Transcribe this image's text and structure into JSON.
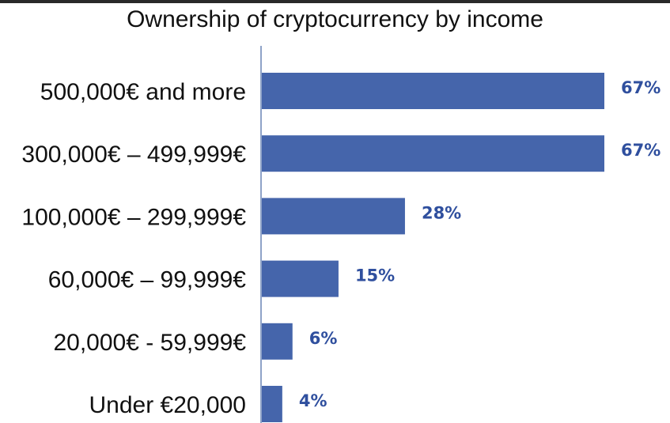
{
  "chart_data": {
    "type": "bar",
    "orientation": "horizontal",
    "title": "Ownership of cryptocurrency by income",
    "xlabel": "",
    "ylabel": "",
    "categories": [
      "500,000€ and more",
      "300,000€ – 499,999€",
      "100,000€ – 299,999€",
      "60,000€ – 99,999€",
      "20,000€ - 59,999€",
      "Under €20,000"
    ],
    "values": [
      67,
      67,
      28,
      15,
      6,
      4
    ],
    "data_labels": [
      "67%",
      "67%",
      "28%",
      "15%",
      "6%",
      "4%"
    ],
    "xlim": [
      0,
      67
    ],
    "grid": false,
    "legend": "none",
    "bar_color": "#4565ab",
    "label_color": "#2f4f9e",
    "axis_color": "#8fa3c8"
  }
}
